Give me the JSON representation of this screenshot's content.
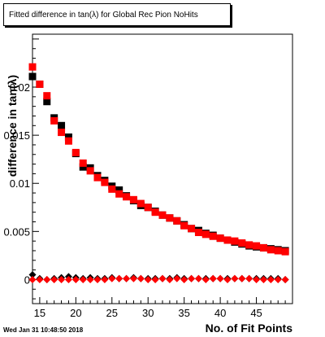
{
  "timestamp": "Wed Jan 31 10:48:50 2018",
  "chart_data": {
    "type": "scatter",
    "title": "Fitted difference in tan(λ) for Global Rec Pion NoHits",
    "xlabel": "No. of Fit Points",
    "ylabel": "difference in tan(λ)",
    "xlim": [
      14,
      50
    ],
    "ylim": [
      -0.0025,
      0.0255
    ],
    "x_ticks": [
      15,
      20,
      25,
      30,
      35,
      40,
      45
    ],
    "y_ticks": [
      0,
      0.005,
      0.01,
      0.015,
      0.02
    ],
    "y_tick_labels": [
      "0",
      "0.005",
      "0.01",
      "0.015",
      "0.02"
    ],
    "grid": false,
    "colors": {
      "black": "#000000",
      "red": "#ff0000"
    },
    "series": [
      {
        "marker": "square",
        "color": "#000000",
        "x": [
          14,
          15,
          16,
          17,
          18,
          19,
          20,
          21,
          22,
          23,
          24,
          25,
          26,
          27,
          28,
          29,
          30,
          31,
          32,
          33,
          34,
          35,
          36,
          37,
          38,
          39,
          40,
          41,
          42,
          43,
          44,
          45,
          46,
          47,
          48,
          49
        ],
        "y": [
          0.0211,
          0.0203,
          0.0185,
          0.0168,
          0.016,
          0.0148,
          0.0131,
          0.0117,
          0.0116,
          0.0108,
          0.0103,
          0.0097,
          0.0093,
          0.0087,
          0.0082,
          0.0077,
          0.0075,
          0.0071,
          0.0067,
          0.0064,
          0.0061,
          0.0057,
          0.0053,
          0.0051,
          0.0048,
          0.0046,
          0.0043,
          0.0041,
          0.0039,
          0.0037,
          0.0035,
          0.0034,
          0.0033,
          0.0032,
          0.0031,
          0.003
        ]
      },
      {
        "marker": "square",
        "color": "#ff0000",
        "x": [
          14,
          15,
          16,
          17,
          18,
          19,
          20,
          21,
          22,
          23,
          24,
          25,
          26,
          27,
          28,
          29,
          30,
          31,
          32,
          33,
          34,
          35,
          36,
          37,
          38,
          39,
          40,
          41,
          42,
          43,
          44,
          45,
          46,
          47,
          48,
          49
        ],
        "y": [
          0.0221,
          0.0203,
          0.0191,
          0.0165,
          0.0153,
          0.0144,
          0.0132,
          0.0121,
          0.0113,
          0.0106,
          0.0101,
          0.0094,
          0.0089,
          0.0086,
          0.0083,
          0.0079,
          0.0075,
          0.007,
          0.0067,
          0.0064,
          0.0061,
          0.0056,
          0.0053,
          0.0049,
          0.0047,
          0.0045,
          0.0043,
          0.0041,
          0.004,
          0.0038,
          0.0036,
          0.0035,
          0.0033,
          0.0031,
          0.003,
          0.0029
        ]
      },
      {
        "marker": "diamond",
        "color": "#000000",
        "x": [
          14,
          15,
          16,
          17,
          18,
          19,
          20,
          21,
          22,
          23,
          24,
          25,
          26,
          27,
          28,
          29,
          30,
          31,
          32,
          33,
          34,
          35,
          36,
          37,
          38,
          39,
          40,
          41,
          42,
          43,
          44,
          45,
          46,
          47,
          48,
          49
        ],
        "y": [
          0.0005,
          0.0001,
          0,
          0.0001,
          0.0002,
          0.0003,
          0.0002,
          0.0001,
          0.0002,
          0.0001,
          0.0001,
          0.0002,
          0.0001,
          0.0001,
          0.0002,
          0.0001,
          0.0001,
          0.0001,
          0.0001,
          0.0001,
          0.0002,
          0.0001,
          0.0001,
          0.0001,
          0.0001,
          0.0001,
          0.0001,
          0.0001,
          0.0001,
          0.0001,
          0.0001,
          0.0001,
          0.0001,
          0.0001,
          0.0001,
          0
        ]
      },
      {
        "marker": "diamond",
        "color": "#ff0000",
        "x": [
          14,
          15,
          16,
          17,
          18,
          19,
          20,
          21,
          22,
          23,
          24,
          25,
          26,
          27,
          28,
          29,
          30,
          31,
          32,
          33,
          34,
          35,
          36,
          37,
          38,
          39,
          40,
          41,
          42,
          43,
          44,
          45,
          46,
          47,
          48,
          49
        ],
        "y": [
          0,
          0,
          0,
          0,
          0,
          0,
          0,
          0,
          0,
          0,
          0,
          0.0001,
          0.0001,
          0.0001,
          0.0001,
          0.0001,
          0,
          0,
          0.0001,
          0,
          0.0001,
          0,
          0.0001,
          0.0001,
          0,
          0.0001,
          0.0001,
          0,
          0.0001,
          0.0001,
          0.0001,
          0,
          0,
          0,
          0,
          0
        ]
      }
    ]
  }
}
